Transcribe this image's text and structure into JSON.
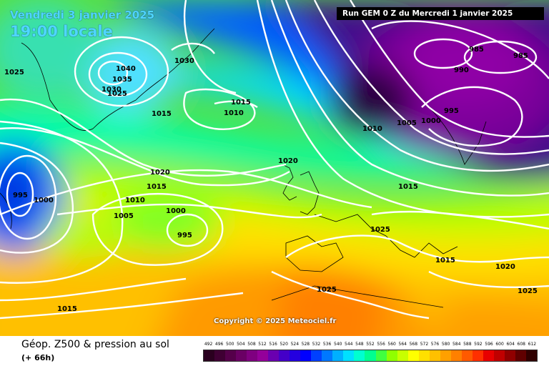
{
  "header": {
    "date": "Vendredi 3 janvier 2025",
    "time": "19:00 locale",
    "run": "Run GEM 0 Z du Mercredi 1 janvier 2025"
  },
  "copyright": "Copyright © 2025 Meteociel.fr",
  "footer": {
    "title": "Géop. Z500 & pression au sol",
    "subtitle": "(+ 66h)"
  },
  "scale": {
    "labels": [
      "492",
      "496",
      "500",
      "504",
      "508",
      "512",
      "516",
      "520",
      "524",
      "528",
      "532",
      "536",
      "540",
      "544",
      "548",
      "552",
      "556",
      "560",
      "564",
      "568",
      "572",
      "576",
      "580",
      "584",
      "588",
      "592",
      "596",
      "600",
      "604",
      "608",
      "612"
    ],
    "colors": [
      "#2a001f",
      "#3f0033",
      "#55004a",
      "#6a0064",
      "#7f0080",
      "#94009a",
      "#6a00b0",
      "#4400c8",
      "#2400e0",
      "#0000ff",
      "#0040ff",
      "#0078ff",
      "#00b0ff",
      "#00e0ff",
      "#00ffd0",
      "#00ff90",
      "#40ff40",
      "#90ff00",
      "#c8ff00",
      "#ffff00",
      "#ffe000",
      "#ffc000",
      "#ffa000",
      "#ff8000",
      "#ff5a00",
      "#ff3000",
      "#e80000",
      "#c00000",
      "#900000",
      "#600000",
      "#300000"
    ]
  },
  "isobar_labels": [
    {
      "text": "1025"
    },
    {
      "text": "1030"
    },
    {
      "text": "1040"
    },
    {
      "text": "1035"
    },
    {
      "text": "1030"
    },
    {
      "text": "1025"
    },
    {
      "text": "1015"
    },
    {
      "text": "1015"
    },
    {
      "text": "1010"
    },
    {
      "text": "1020"
    },
    {
      "text": "1015"
    },
    {
      "text": "1010"
    },
    {
      "text": "1005"
    },
    {
      "text": "1000"
    },
    {
      "text": "995"
    },
    {
      "text": "995"
    },
    {
      "text": "1000"
    },
    {
      "text": "1020"
    },
    {
      "text": "1010"
    },
    {
      "text": "1005"
    },
    {
      "text": "1000"
    },
    {
      "text": "995"
    },
    {
      "text": "990"
    },
    {
      "text": "985"
    },
    {
      "text": "985"
    },
    {
      "text": "1015"
    },
    {
      "text": "1025"
    },
    {
      "text": "1015"
    },
    {
      "text": "1020"
    },
    {
      "text": "1025"
    },
    {
      "text": "1025"
    },
    {
      "text": "1015"
    }
  ]
}
